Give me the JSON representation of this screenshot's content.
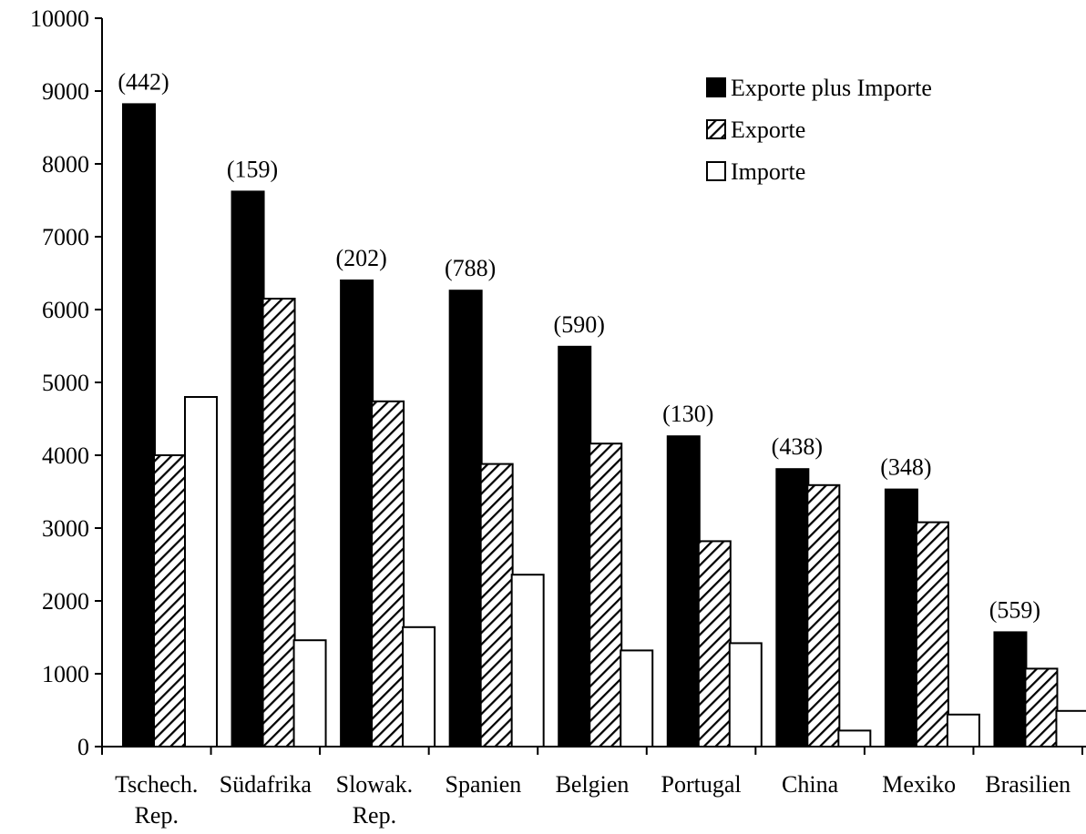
{
  "chart_data": {
    "type": "bar",
    "categories": [
      "Tschech.\nRep.",
      "Südafrika",
      "Slowak.\nRep.",
      "Spanien",
      "Belgien",
      "Portugal",
      "China",
      "Mexiko",
      "Brasilien"
    ],
    "series": [
      {
        "name": "Exporte plus Importe",
        "values": [
          8820,
          7620,
          6400,
          6260,
          5490,
          4260,
          3810,
          3530,
          1570
        ],
        "pattern": "solid"
      },
      {
        "name": "Exporte",
        "values": [
          4000,
          6150,
          4740,
          3880,
          4160,
          2820,
          3590,
          3080,
          1070
        ],
        "pattern": "hatch"
      },
      {
        "name": "Importe",
        "values": [
          4800,
          1460,
          1640,
          2360,
          1320,
          1420,
          220,
          440,
          490
        ],
        "pattern": "empty"
      }
    ],
    "annotations": [
      "(442)",
      "(159)",
      "(202)",
      "(788)",
      "(590)",
      "(130)",
      "(438)",
      "(348)",
      "(559)"
    ],
    "yticks": [
      0,
      1000,
      2000,
      3000,
      4000,
      5000,
      6000,
      7000,
      8000,
      9000,
      10000
    ],
    "ylim": [
      0,
      10000
    ],
    "xlabel": "",
    "ylabel": "",
    "title": "",
    "grid": false,
    "legend_position": "top-right",
    "colors": {
      "solid": "#000000",
      "outline": "#000000",
      "background": "#ffffff"
    }
  }
}
